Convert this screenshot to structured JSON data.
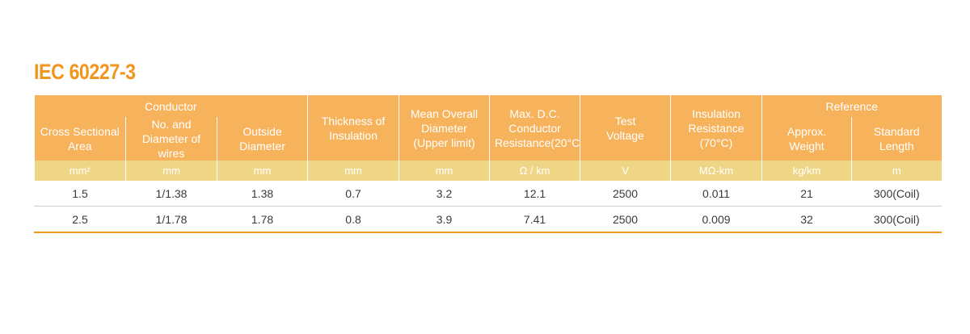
{
  "title": "IEC 60227-3",
  "header": {
    "conductor": "Conductor",
    "cross_sectional_area": "Cross Sectional Area",
    "no_diameter_wires": "No. and Diameter of wires",
    "outside_diameter": "Outside Diameter",
    "thickness_insulation": "Thickness of Insulation",
    "mean_overall_diameter": "Mean Overall Diameter (Upper limit)",
    "max_dc_resistance": "Max. D.C. Conductor Resistance(20°C)",
    "test_voltage": "Test Voltage",
    "insulation_resistance": "Insulation Resistance (70°C)",
    "reference": "Reference",
    "approx_weight": "Approx. Weight",
    "standard_length": "Standard Length"
  },
  "units": [
    "mm²",
    "mm",
    "mm",
    "mm",
    "mm",
    "Ω / km",
    "V",
    "MΩ-km",
    "kg/km",
    "m"
  ],
  "rows": [
    [
      "1.5",
      "1/1.38",
      "1.38",
      "0.7",
      "3.2",
      "12.1",
      "2500",
      "0.011",
      "21",
      "300(Coil)"
    ],
    [
      "2.5",
      "1/1.78",
      "1.78",
      "0.8",
      "3.9",
      "7.41",
      "2500",
      "0.009",
      "32",
      "300(Coil)"
    ]
  ],
  "colors": {
    "accent": "#f0961e",
    "header_bg": "#f7b35c",
    "unit_bg": "#efd686"
  }
}
